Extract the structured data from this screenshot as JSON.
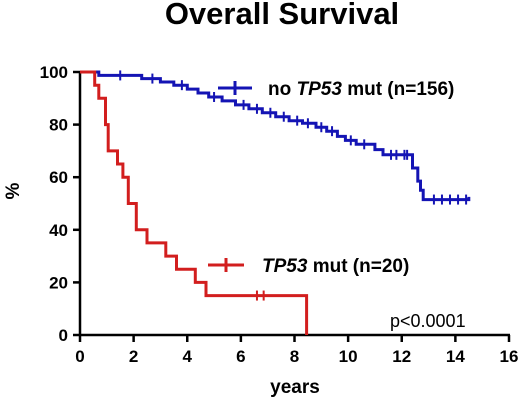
{
  "chart_data": {
    "type": "line",
    "title": "Overall Survival",
    "xlabel": "years",
    "ylabel": "%",
    "xlim": [
      0,
      16
    ],
    "ylim": [
      0,
      100
    ],
    "x_ticks": [
      0,
      2,
      4,
      6,
      8,
      10,
      12,
      14,
      16
    ],
    "y_ticks": [
      0,
      20,
      40,
      60,
      80,
      100
    ],
    "grid": false,
    "annotation": "p<0.0001",
    "series": [
      {
        "legend_prefix": "no ",
        "legend_italic": "TP53",
        "legend_suffix": " mut (n=156)",
        "color": "#1414b4",
        "step_points": [
          [
            0,
            100
          ],
          [
            0.7,
            100
          ],
          [
            0.7,
            98.7
          ],
          [
            2.3,
            98.7
          ],
          [
            2.3,
            97.5
          ],
          [
            3.0,
            97.5
          ],
          [
            3.0,
            96.2
          ],
          [
            3.5,
            96.2
          ],
          [
            3.5,
            95.0
          ],
          [
            4.0,
            95.0
          ],
          [
            4.0,
            93.5
          ],
          [
            4.4,
            93.5
          ],
          [
            4.4,
            92.0
          ],
          [
            4.8,
            92.0
          ],
          [
            4.8,
            90.5
          ],
          [
            5.3,
            90.5
          ],
          [
            5.3,
            89.0
          ],
          [
            5.8,
            89.0
          ],
          [
            5.8,
            87.5
          ],
          [
            6.3,
            87.5
          ],
          [
            6.3,
            86.0
          ],
          [
            6.8,
            86.0
          ],
          [
            6.8,
            84.5
          ],
          [
            7.3,
            84.5
          ],
          [
            7.3,
            83.0
          ],
          [
            7.8,
            83.0
          ],
          [
            7.8,
            81.5
          ],
          [
            8.3,
            81.5
          ],
          [
            8.3,
            80.5
          ],
          [
            8.8,
            80.5
          ],
          [
            8.8,
            79.0
          ],
          [
            9.2,
            79.0
          ],
          [
            9.2,
            77.5
          ],
          [
            9.6,
            77.5
          ],
          [
            9.6,
            75.5
          ],
          [
            9.9,
            75.5
          ],
          [
            9.9,
            74.0
          ],
          [
            10.3,
            74.0
          ],
          [
            10.3,
            72.5
          ],
          [
            11.0,
            72.5
          ],
          [
            11.0,
            70.5
          ],
          [
            11.3,
            70.5
          ],
          [
            11.3,
            68.5
          ],
          [
            12.4,
            68.5
          ],
          [
            12.4,
            63.5
          ],
          [
            12.6,
            63.5
          ],
          [
            12.6,
            58.5
          ],
          [
            12.7,
            58.5
          ],
          [
            12.7,
            55.0
          ],
          [
            12.8,
            55.0
          ],
          [
            12.8,
            51.5
          ],
          [
            14.5,
            51.5
          ],
          [
            14.5,
            52.5
          ]
        ],
        "censor_x": [
          1.5,
          2.7,
          3.8,
          5.0,
          6.1,
          6.6,
          7.1,
          7.6,
          8.1,
          8.5,
          9.0,
          9.4,
          10.1,
          10.6,
          11.6,
          11.8,
          12.1,
          12.2,
          13.2,
          13.5,
          13.8,
          14.1,
          14.4
        ]
      },
      {
        "legend_prefix": "",
        "legend_italic": "TP53",
        "legend_suffix": " mut (n=20)",
        "color": "#d21e1e",
        "step_points": [
          [
            0,
            100
          ],
          [
            0.55,
            100
          ],
          [
            0.55,
            95
          ],
          [
            0.7,
            95
          ],
          [
            0.7,
            90
          ],
          [
            0.95,
            90
          ],
          [
            0.95,
            80
          ],
          [
            1.05,
            80
          ],
          [
            1.05,
            70
          ],
          [
            1.4,
            70
          ],
          [
            1.4,
            65
          ],
          [
            1.6,
            65
          ],
          [
            1.6,
            60
          ],
          [
            1.8,
            60
          ],
          [
            1.8,
            50
          ],
          [
            2.1,
            50
          ],
          [
            2.1,
            40
          ],
          [
            2.5,
            40
          ],
          [
            2.5,
            35
          ],
          [
            3.2,
            35
          ],
          [
            3.2,
            30
          ],
          [
            3.6,
            30
          ],
          [
            3.6,
            25
          ],
          [
            4.3,
            25
          ],
          [
            4.3,
            20
          ],
          [
            4.7,
            20
          ],
          [
            4.7,
            15
          ],
          [
            8.45,
            15
          ],
          [
            8.45,
            0
          ]
        ],
        "censor_x": [
          6.6,
          6.85
        ]
      }
    ]
  }
}
